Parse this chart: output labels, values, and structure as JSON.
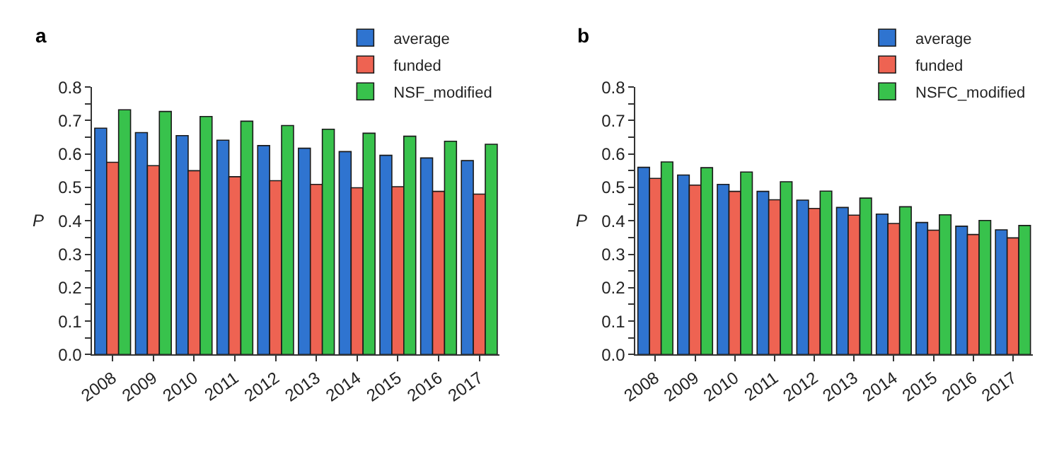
{
  "chart_data": [
    {
      "type": "bar",
      "title": "a",
      "ylabel": "P",
      "categories": [
        "2008",
        "2009",
        "2010",
        "2011",
        "2012",
        "2013",
        "2014",
        "2015",
        "2016",
        "2017"
      ],
      "series": [
        {
          "name": "average",
          "color": "#2f74d0",
          "values": [
            0.677,
            0.664,
            0.655,
            0.641,
            0.625,
            0.617,
            0.607,
            0.596,
            0.588,
            0.58
          ]
        },
        {
          "name": "funded",
          "color": "#ee6352",
          "values": [
            0.575,
            0.565,
            0.55,
            0.532,
            0.52,
            0.509,
            0.499,
            0.502,
            0.488,
            0.48
          ]
        },
        {
          "name": "NSF_modified",
          "color": "#38c24c",
          "values": [
            0.732,
            0.727,
            0.712,
            0.698,
            0.685,
            0.674,
            0.662,
            0.653,
            0.638,
            0.629
          ]
        }
      ],
      "ylim": [
        0,
        0.8
      ],
      "yticks": [
        {
          "value": 0,
          "label": "0.0"
        },
        {
          "value": 0.05,
          "label": null
        },
        0.1,
        {
          "value": 0.15,
          "label": null
        },
        0.2,
        {
          "value": 0.25,
          "label": null
        },
        0.3,
        {
          "value": 0.35,
          "label": null
        },
        0.4,
        {
          "value": 0.45,
          "label": null
        },
        0.5,
        {
          "value": 0.55,
          "label": null
        },
        0.6,
        {
          "value": 0.65,
          "label": null
        },
        0.7,
        {
          "value": 0.75,
          "label": null
        },
        0.8
      ],
      "legend": "top right"
    },
    {
      "type": "bar",
      "title": "b",
      "ylabel": "P",
      "categories": [
        "2008",
        "2009",
        "2010",
        "2011",
        "2012",
        "2013",
        "2014",
        "2015",
        "2016",
        "2017"
      ],
      "series": [
        {
          "name": "average",
          "color": "#2f74d0",
          "values": [
            0.56,
            0.537,
            0.509,
            0.488,
            0.462,
            0.44,
            0.42,
            0.395,
            0.384,
            0.373
          ]
        },
        {
          "name": "funded",
          "color": "#ee6352",
          "values": [
            0.527,
            0.507,
            0.488,
            0.463,
            0.437,
            0.417,
            0.392,
            0.372,
            0.359,
            0.349
          ]
        },
        {
          "name": "NSFC_modified",
          "color": "#38c24c",
          "values": [
            0.576,
            0.559,
            0.546,
            0.517,
            0.489,
            0.468,
            0.442,
            0.418,
            0.401,
            0.386
          ]
        }
      ],
      "ylim": [
        0,
        0.8
      ],
      "yticks": [
        {
          "value": 0,
          "label": "0.0"
        },
        {
          "value": 0.05,
          "label": null
        },
        0.1,
        {
          "value": 0.15,
          "label": null
        },
        0.2,
        {
          "value": 0.25,
          "label": null
        },
        0.3,
        {
          "value": 0.35,
          "label": null
        },
        0.4,
        {
          "value": 0.45,
          "label": null
        },
        0.5,
        {
          "value": 0.55,
          "label": null
        },
        0.6,
        {
          "value": 0.65,
          "label": null
        },
        0.7,
        {
          "value": 0.75,
          "label": null
        },
        0.8
      ],
      "legend": "top right"
    }
  ]
}
